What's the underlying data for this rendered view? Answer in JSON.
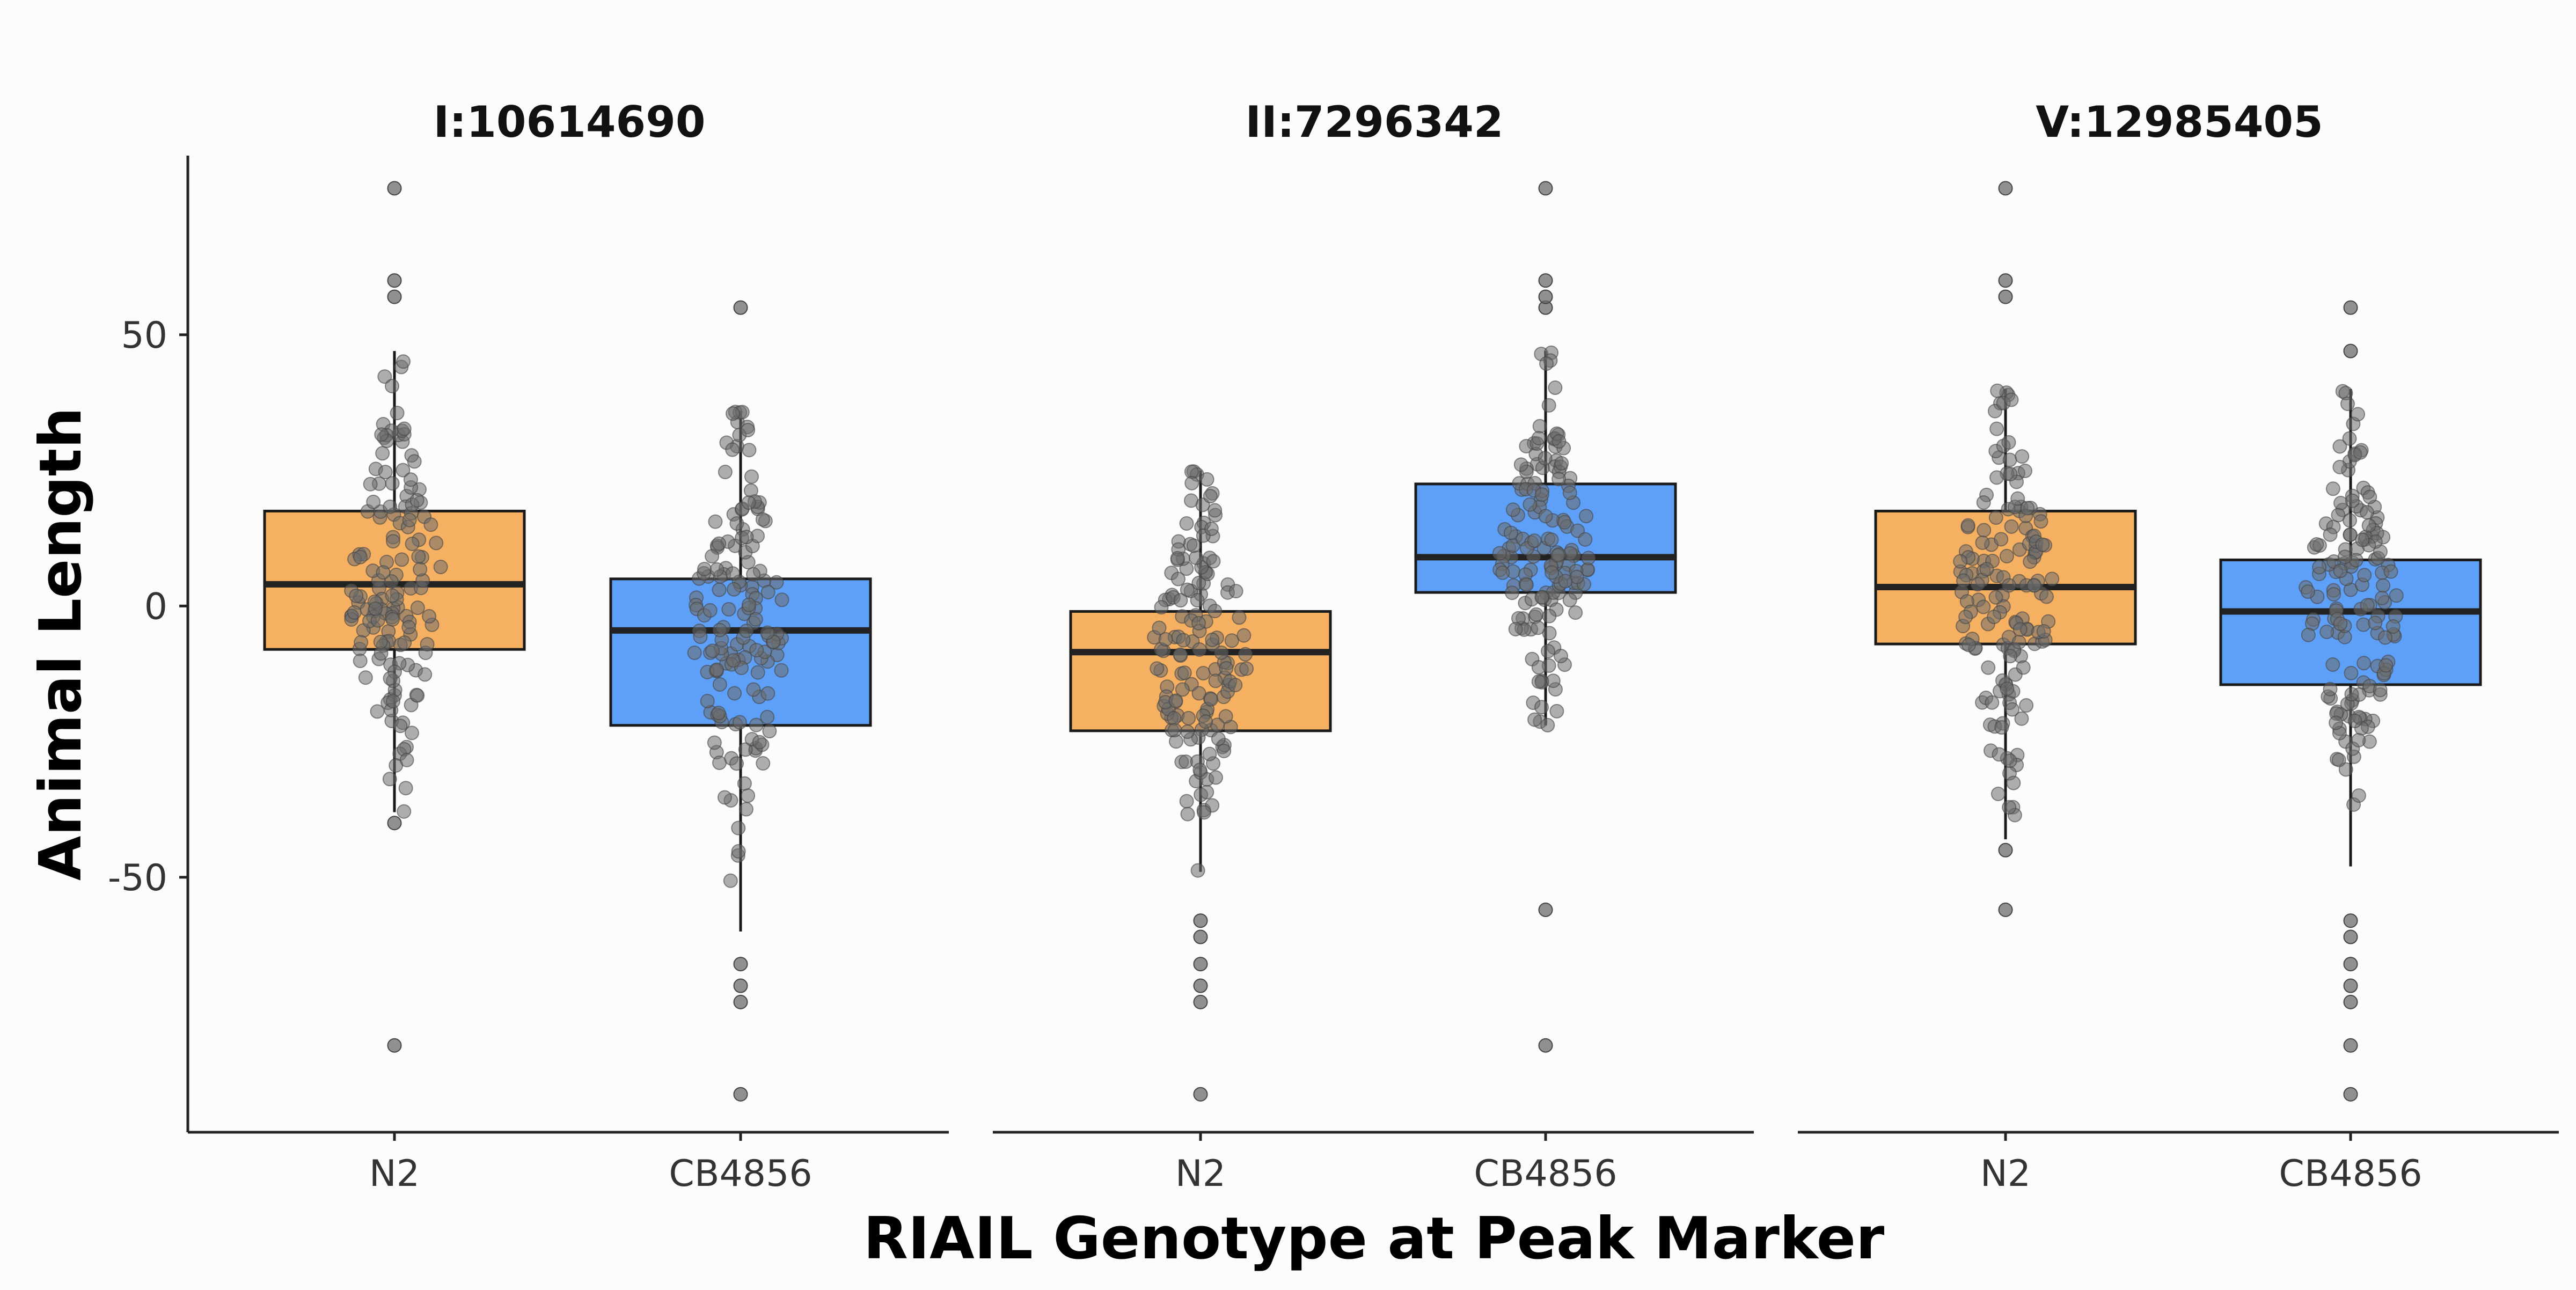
{
  "chart_data": {
    "type": "box",
    "xlabel": "RIAIL Genotype at Peak Marker",
    "ylabel": "Animal Length",
    "ylim": [
      -97,
      85
    ],
    "yticks": [
      50,
      0,
      -50
    ],
    "grid": false,
    "legend": "none",
    "colors": {
      "N2": "#f5b062",
      "CB4856": "#5ea0f7",
      "points": "#6b6b6b"
    },
    "categories": [
      "N2",
      "CB4856"
    ],
    "panels": [
      {
        "title": "I:10614690",
        "boxes": [
          {
            "category": "N2",
            "q1": -8,
            "median": 4,
            "q3": 17.5,
            "whisker_low": -38,
            "whisker_high": 47,
            "outliers": [
              -40,
              57,
              60,
              77,
              -81
            ]
          },
          {
            "category": "CB4856",
            "q1": -22,
            "median": -4.5,
            "q3": 5,
            "whisker_low": -60,
            "whisker_high": 36,
            "outliers": [
              55,
              -66,
              -70,
              -73,
              -90
            ]
          }
        ]
      },
      {
        "title": "II:7296342",
        "boxes": [
          {
            "category": "N2",
            "q1": -23,
            "median": -8.5,
            "q3": -1,
            "whisker_low": -49,
            "whisker_high": 25,
            "outliers": [
              -58,
              -61,
              -66,
              -70,
              -73,
              -90
            ]
          },
          {
            "category": "CB4856",
            "q1": 2.5,
            "median": 9,
            "q3": 22.5,
            "whisker_low": -22,
            "whisker_high": 47,
            "outliers": [
              55,
              57,
              60,
              77,
              -56,
              -81
            ]
          }
        ]
      },
      {
        "title": "V:12985405",
        "boxes": [
          {
            "category": "N2",
            "q1": -7,
            "median": 3.5,
            "q3": 17.5,
            "whisker_low": -43,
            "whisker_high": 40,
            "outliers": [
              -45,
              -56,
              57,
              60,
              77
            ]
          },
          {
            "category": "CB4856",
            "q1": -14.5,
            "median": -1,
            "q3": 8.5,
            "whisker_low": -48,
            "whisker_high": 40,
            "outliers": [
              47,
              55,
              -58,
              -61,
              -66,
              -70,
              -73,
              -81,
              -90
            ]
          }
        ]
      }
    ]
  }
}
